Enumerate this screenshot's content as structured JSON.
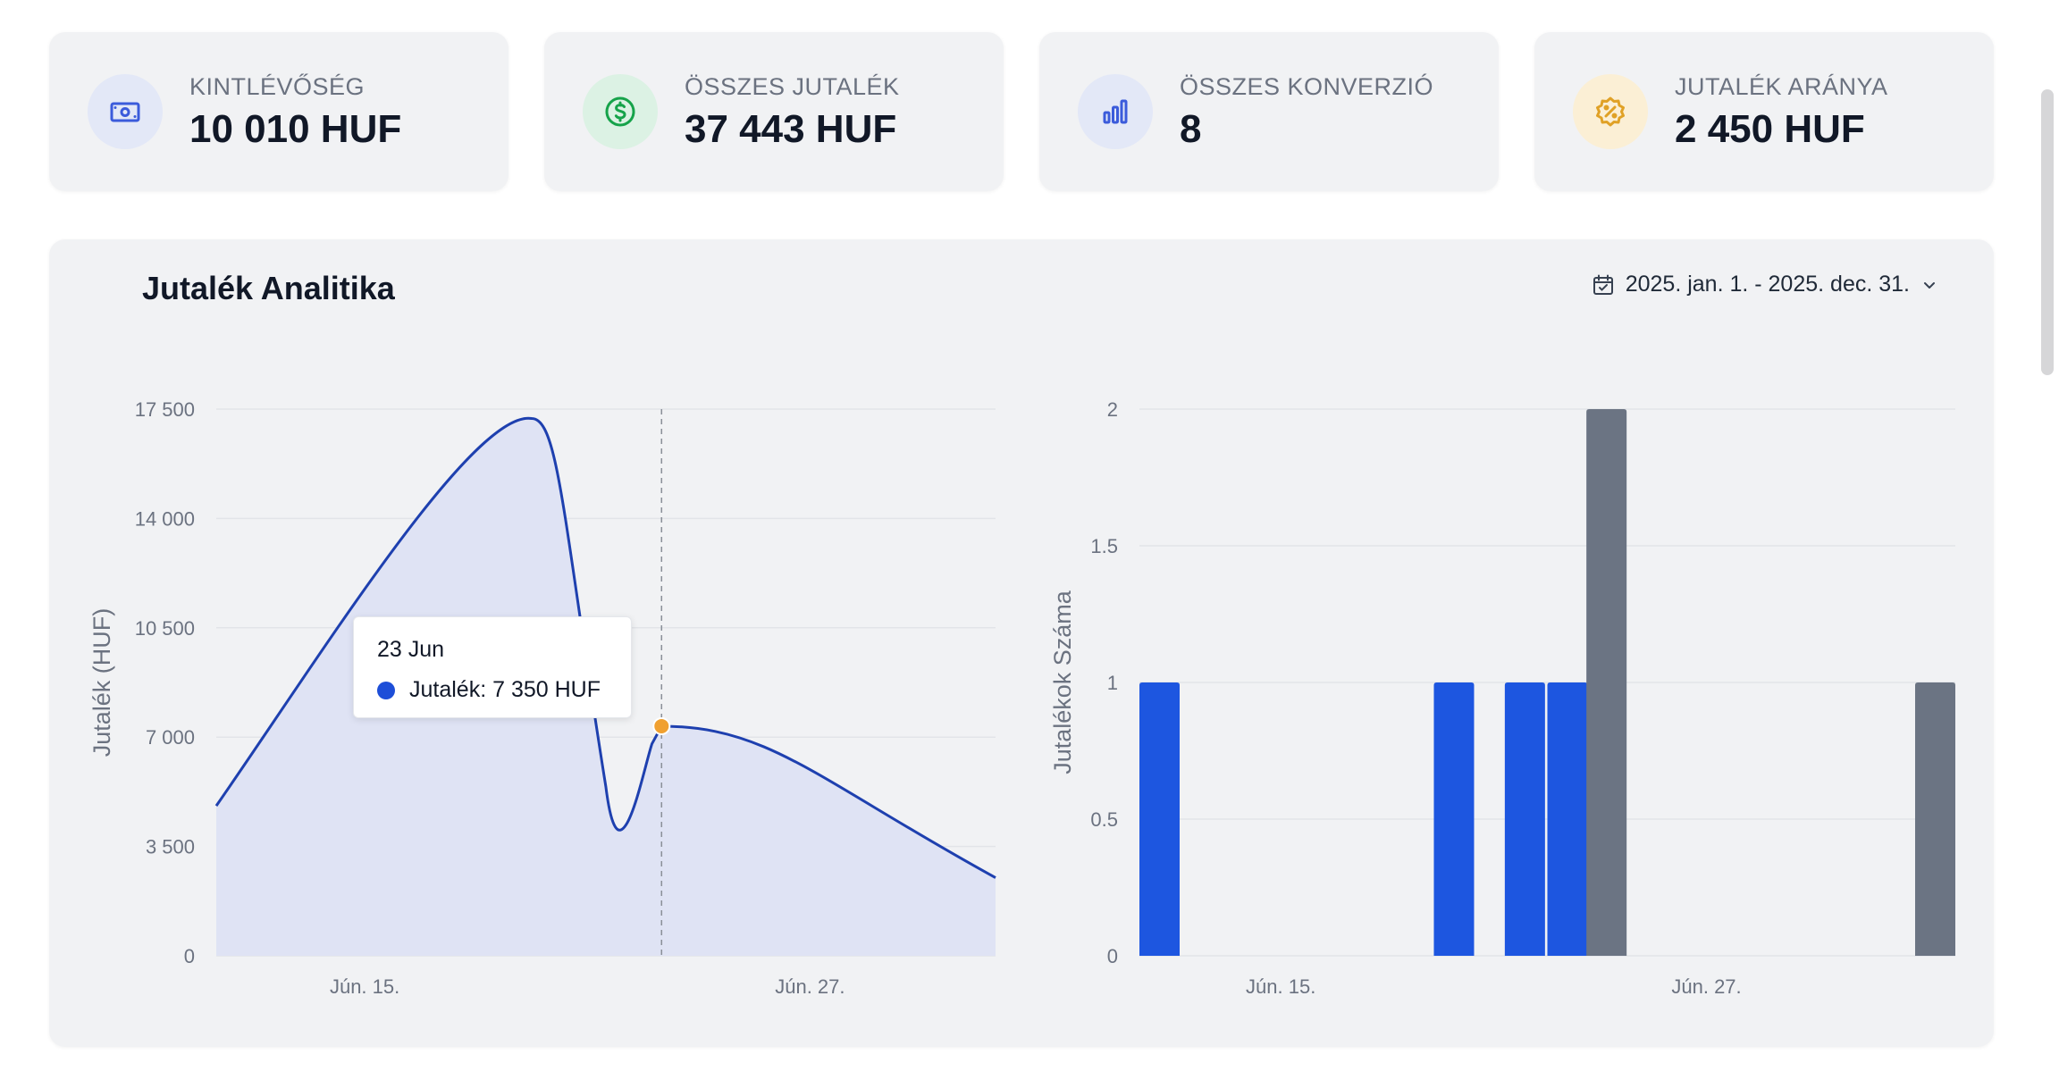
{
  "cards": [
    {
      "label": "KINTLÉVŐSÉG",
      "value": "10 010 HUF",
      "icon": "money-icon",
      "icon_bg": "#e3e8f7",
      "icon_color": "#3b5bdb"
    },
    {
      "label": "ÖSSZES JUTALÉK",
      "value": "37 443 HUF",
      "icon": "dollar-icon",
      "icon_bg": "#dcf2e4",
      "icon_color": "#16a34a"
    },
    {
      "label": "ÖSSZES KONVERZIÓ",
      "value": "8",
      "icon": "bar-chart-icon",
      "icon_bg": "#e3e8f7",
      "icon_color": "#3b5bdb"
    },
    {
      "label": "JUTALÉK ARÁNYA",
      "value": "2 450 HUF",
      "icon": "percent-badge-icon",
      "icon_bg": "#fbefd5",
      "icon_color": "#e0a126"
    }
  ],
  "panel": {
    "title": "Jutalék Analitika",
    "date_range": "2025. jan. 1. - 2025. dec. 31."
  },
  "tooltip": {
    "date": "23 Jun",
    "text": "Jutalék: 7 350 HUF"
  },
  "colors": {
    "line": "#1e40af",
    "area": "#dfe3f4",
    "bar_primary": "#1d56e0",
    "bar_secondary": "#6b7483",
    "marker": "#f0a030"
  },
  "chart_data": [
    {
      "type": "area",
      "ylabel": "Jutalék (HUF)",
      "y_ticks": [
        "0",
        "3 500",
        "7 000",
        "10 500",
        "14 000",
        "17 500"
      ],
      "ylim": [
        0,
        17500
      ],
      "x_tick_labels": [
        "Jún. 15.",
        "Jún. 27."
      ],
      "x_range_days": [
        11,
        32
      ],
      "x_ticks_days": [
        15,
        27
      ],
      "points_day": [
        11,
        19.5,
        21.5,
        22.5,
        23,
        32
      ],
      "points_value": [
        4800,
        17200,
        5400,
        6500,
        7350,
        2500
      ],
      "series": [
        {
          "name": "Jutalék"
        }
      ],
      "highlight_day": 23,
      "grid": true
    },
    {
      "type": "bar",
      "ylabel": "Jutalékok Száma",
      "y_ticks": [
        "0",
        "0.5",
        "1",
        "1.5",
        "2"
      ],
      "ylim": [
        0,
        2
      ],
      "x_tick_labels": [
        "Jún. 15.",
        "Jún. 27."
      ],
      "x_range_days": [
        9,
        32
      ],
      "x_ticks_days": [
        15,
        27
      ],
      "bars": [
        {
          "day": 9,
          "value": 1,
          "color": "primary"
        },
        {
          "day": 17.3,
          "value": 1,
          "color": "primary"
        },
        {
          "day": 19.3,
          "value": 1,
          "color": "primary"
        },
        {
          "day": 20.5,
          "value": 1,
          "color": "primary"
        },
        {
          "day": 21.6,
          "value": 2,
          "color": "secondary"
        },
        {
          "day": 30.9,
          "value": 1,
          "color": "secondary"
        }
      ],
      "grid": true
    }
  ]
}
